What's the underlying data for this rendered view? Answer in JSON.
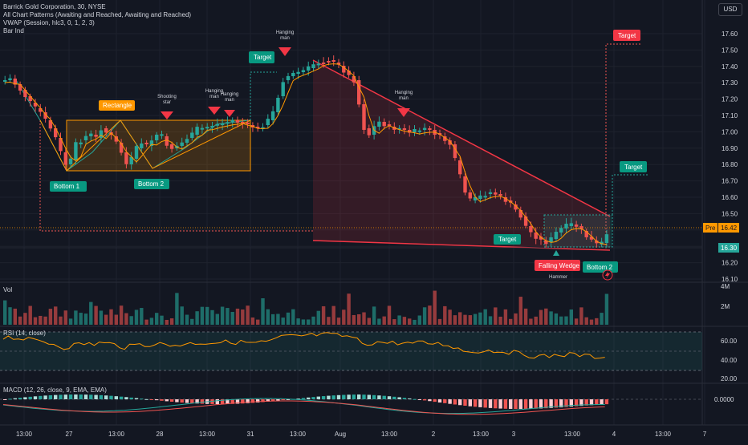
{
  "legend": {
    "title": "Barrick Gold Corporation, 30, NYSE",
    "indicators": [
      "All Chart Patterns (Awaiting and Reached, Awaiting and Reached)",
      "VWAP (Session, hlc3, 0, 1, 2, 3)",
      "Bar Ind"
    ]
  },
  "currency": "USD",
  "price_axis": {
    "ticks": [
      "17.60",
      "17.50",
      "17.40",
      "17.30",
      "17.20",
      "17.10",
      "17.00",
      "16.90",
      "16.80",
      "16.70",
      "16.60",
      "16.50",
      "16.40",
      "16.30",
      "16.20",
      "16.10"
    ],
    "pre_label": "Pre",
    "pre_value": "16.42",
    "last_value": "16.30"
  },
  "time_axis": {
    "ticks": [
      "13:00",
      "27",
      "13:00",
      "28",
      "13:00",
      "31",
      "13:00",
      "Aug",
      "13:00",
      "2",
      "13:00",
      "3",
      "13:00",
      "4",
      "13:00",
      "7"
    ]
  },
  "annotations": {
    "rectangle": "Rectangle",
    "bottom1": "Bottom 1",
    "bottom2_left": "Bottom 2",
    "shooting_star": [
      "Shooting",
      "star"
    ],
    "hanging_man": [
      "Hanging",
      "man"
    ],
    "target_left": "Target",
    "target_top": "Target",
    "target_mid": "Target",
    "target_low": "Target",
    "falling_wedge": "Falling Wedge",
    "bottom2_right": "Bottom 2",
    "hammer": "Hammer"
  },
  "volume": {
    "label": "Vol",
    "ticks": [
      "4M",
      "2M"
    ]
  },
  "rsi": {
    "label": "RSI (14, close)",
    "ticks": [
      "60.00",
      "40.00",
      "20.00"
    ]
  },
  "macd": {
    "label": "MACD (12, 26, close, 9, EMA, EMA)",
    "ticks": [
      "0.0000"
    ]
  },
  "colors": {
    "background": "#131722",
    "up": "#26a69a",
    "down": "#ef5350",
    "pattern_orange": "#ff9800",
    "wedge": "#f23645",
    "rsi_line": "#ff9800"
  }
}
